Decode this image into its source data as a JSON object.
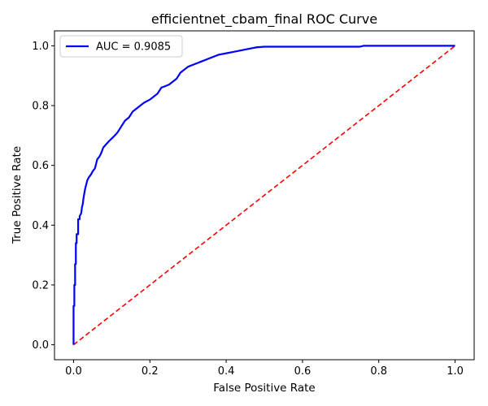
{
  "chart_data": {
    "type": "line",
    "title": "efficientnet_cbam_final ROC Curve",
    "xlabel": "False Positive Rate",
    "ylabel": "True Positive Rate",
    "xlim": [
      -0.05,
      1.05
    ],
    "ylim": [
      -0.05,
      1.05
    ],
    "xticks": [
      0.0,
      0.2,
      0.4,
      0.6,
      0.8,
      1.0
    ],
    "yticks": [
      0.0,
      0.2,
      0.4,
      0.6,
      0.8,
      1.0
    ],
    "xtick_labels": [
      "0.0",
      "0.2",
      "0.4",
      "0.6",
      "0.8",
      "1.0"
    ],
    "ytick_labels": [
      "0.0",
      "0.2",
      "0.4",
      "0.6",
      "0.8",
      "1.0"
    ],
    "grid": false,
    "legend": {
      "placement": "upper-left",
      "entries": [
        "AUC = 0.9085"
      ]
    },
    "series": [
      {
        "name": "AUC = 0.9085",
        "color": "#0000ff",
        "style": "solid",
        "x": [
          0.0,
          0.0,
          0.002,
          0.002,
          0.004,
          0.004,
          0.006,
          0.006,
          0.008,
          0.008,
          0.012,
          0.012,
          0.016,
          0.016,
          0.02,
          0.022,
          0.024,
          0.026,
          0.03,
          0.032,
          0.036,
          0.04,
          0.046,
          0.05,
          0.056,
          0.062,
          0.068,
          0.072,
          0.078,
          0.085,
          0.092,
          0.1,
          0.108,
          0.115,
          0.125,
          0.135,
          0.145,
          0.155,
          0.165,
          0.175,
          0.185,
          0.2,
          0.21,
          0.22,
          0.23,
          0.24,
          0.25,
          0.26,
          0.27,
          0.28,
          0.3,
          0.32,
          0.34,
          0.36,
          0.38,
          0.4,
          0.42,
          0.44,
          0.46,
          0.48,
          0.5,
          0.6,
          0.7,
          0.75,
          0.76,
          0.8,
          0.9,
          1.0
        ],
        "y": [
          0.0,
          0.13,
          0.13,
          0.2,
          0.2,
          0.27,
          0.27,
          0.34,
          0.34,
          0.37,
          0.37,
          0.42,
          0.42,
          0.43,
          0.44,
          0.46,
          0.47,
          0.49,
          0.52,
          0.53,
          0.55,
          0.56,
          0.57,
          0.58,
          0.59,
          0.62,
          0.63,
          0.64,
          0.66,
          0.67,
          0.68,
          0.69,
          0.7,
          0.71,
          0.73,
          0.75,
          0.76,
          0.78,
          0.79,
          0.8,
          0.81,
          0.82,
          0.83,
          0.84,
          0.86,
          0.865,
          0.87,
          0.88,
          0.89,
          0.91,
          0.93,
          0.94,
          0.95,
          0.96,
          0.97,
          0.975,
          0.98,
          0.985,
          0.99,
          0.995,
          0.997,
          0.997,
          0.997,
          0.997,
          1.0,
          1.0,
          1.0,
          1.0
        ]
      },
      {
        "name": "",
        "color": "#ff0000",
        "style": "dashed",
        "x": [
          0.0,
          1.0
        ],
        "y": [
          0.0,
          1.0
        ]
      }
    ]
  }
}
